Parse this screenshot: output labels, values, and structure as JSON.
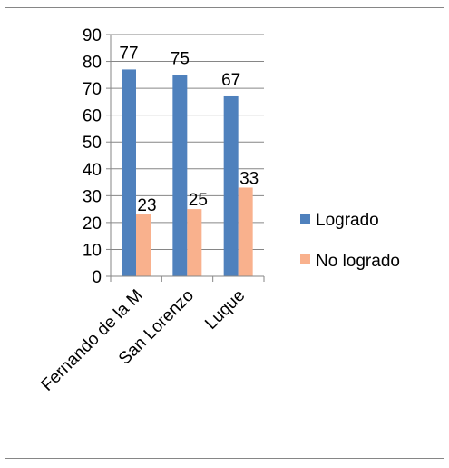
{
  "chart_data": {
    "type": "bar",
    "categories": [
      "Fernando de la M",
      "San Lorenzo",
      "Luque"
    ],
    "series": [
      {
        "name": "Logrado",
        "values": [
          77,
          75,
          67
        ],
        "color": "#4f81bd"
      },
      {
        "name": "No logrado",
        "values": [
          23,
          25,
          33
        ],
        "color": "#f9b18d"
      }
    ],
    "ylim": [
      0,
      90
    ],
    "yticks": [
      0,
      10,
      20,
      30,
      40,
      50,
      60,
      70,
      80,
      90
    ],
    "grid": true,
    "legend_position": "right",
    "data_labels": true
  }
}
